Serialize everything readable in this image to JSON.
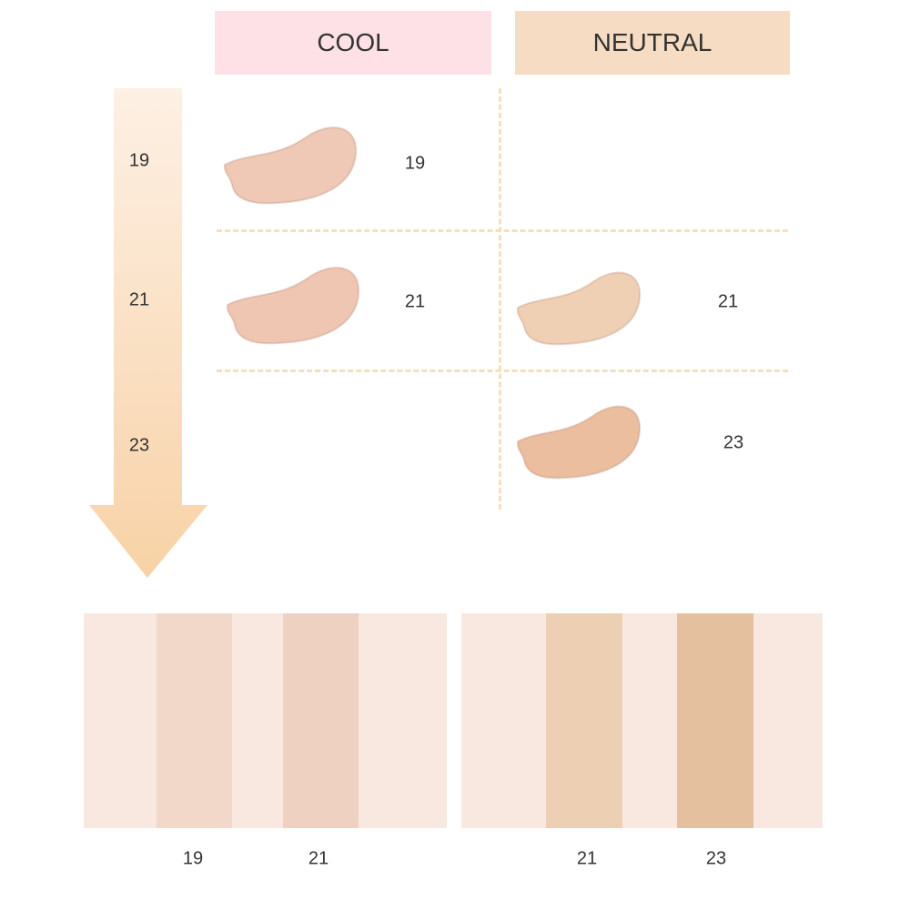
{
  "headers": {
    "cool": "COOL",
    "neutral": "NEUTRAL"
  },
  "colors": {
    "cool_header": "#fde1e7",
    "neutral_header": "#f6dcc2",
    "arrow_top": "#fdf0e4",
    "arrow_bottom": "#f8d2a6",
    "dashes": "#f8dfbb"
  },
  "scale_labels": [
    "19",
    "21",
    "23"
  ],
  "swatches": {
    "cool": [
      {
        "shade": "19",
        "color": "#efc8b6"
      },
      {
        "shade": "21",
        "color": "#efc6b2"
      }
    ],
    "neutral": [
      {
        "shade": "21",
        "color": "#f0d0b4"
      },
      {
        "shade": "23",
        "color": "#ebbea0"
      }
    ]
  },
  "strips": {
    "cool": [
      {
        "shade": "19",
        "color": "#f2d8c8"
      },
      {
        "shade": "21",
        "color": "#efd1c2"
      }
    ],
    "neutral": [
      {
        "shade": "21",
        "color": "#edd0b3"
      },
      {
        "shade": "23",
        "color": "#e4c09f"
      }
    ],
    "base_color": "#f8e8df"
  }
}
